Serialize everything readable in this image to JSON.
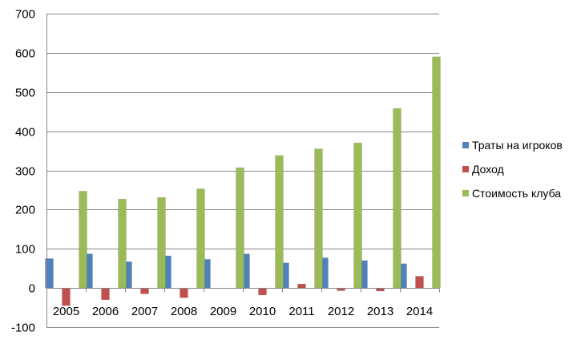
{
  "chart_data": {
    "type": "bar",
    "title": "",
    "xlabel": "",
    "ylabel": "",
    "categories": [
      "2005",
      "2006",
      "2007",
      "2008",
      "2009",
      "2010",
      "2011",
      "2012",
      "2013",
      "2014"
    ],
    "ylim": [
      -100,
      700
    ],
    "yticks": [
      -100,
      0,
      100,
      200,
      300,
      400,
      500,
      600,
      700
    ],
    "ytick_labels": [
      "-100",
      "0",
      "100",
      "200",
      "300",
      "400",
      "500",
      "600",
      "700"
    ],
    "grid": true,
    "legend_position": "right",
    "series": [
      {
        "name": "Траты на игроков",
        "color": "#4F81BD",
        "values": [
          75,
          87,
          67,
          82,
          73,
          87,
          64,
          77,
          70,
          62
        ]
      },
      {
        "name": "Доход",
        "color": "#C0504D",
        "values": [
          -45,
          -30,
          -15,
          -25,
          0,
          -18,
          10,
          -7,
          -8,
          30
        ]
      },
      {
        "name": "Стоимость клуба",
        "color": "#9BBB59",
        "values": [
          247,
          227,
          231,
          253,
          307,
          338,
          355,
          370,
          458,
          590
        ]
      }
    ]
  }
}
